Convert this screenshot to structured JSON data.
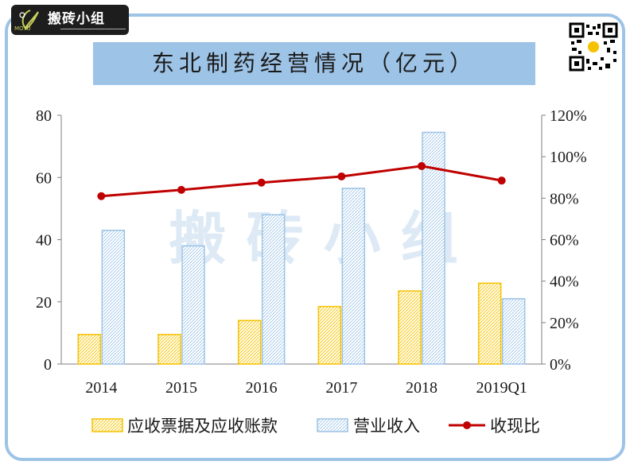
{
  "logo": {
    "name": "搬砖小组",
    "tag": "MOYU"
  },
  "watermark": "搬 砖 小 组",
  "chart_data": {
    "type": "bar",
    "title": "东北制药经营情况（亿元）",
    "categories": [
      "2014",
      "2015",
      "2016",
      "2017",
      "2018",
      "2019Q1"
    ],
    "series": [
      {
        "name": "应收票据及应收账款",
        "type": "bar",
        "axis": "left",
        "values": [
          9.5,
          9.5,
          14,
          18.5,
          23.5,
          26
        ]
      },
      {
        "name": "营业收入",
        "type": "bar",
        "axis": "left",
        "values": [
          43,
          38,
          48,
          56.5,
          74.5,
          21
        ]
      },
      {
        "name": "收现比",
        "type": "line",
        "axis": "right",
        "values": [
          0.81,
          0.84,
          0.875,
          0.905,
          0.955,
          0.885
        ]
      }
    ],
    "y_left": {
      "ylim": [
        0,
        80
      ],
      "ticks": [
        "0",
        "20",
        "40",
        "60",
        "80"
      ]
    },
    "y_right": {
      "ylim": [
        0,
        1.2
      ],
      "ticks": [
        "0%",
        "20%",
        "40%",
        "60%",
        "80%",
        "100%",
        "120%"
      ]
    },
    "legend": "bottom",
    "grid": false,
    "colors": {
      "receivables": "#f5c200",
      "revenue": "#9dc3e6",
      "ratio": "#c00000"
    }
  }
}
